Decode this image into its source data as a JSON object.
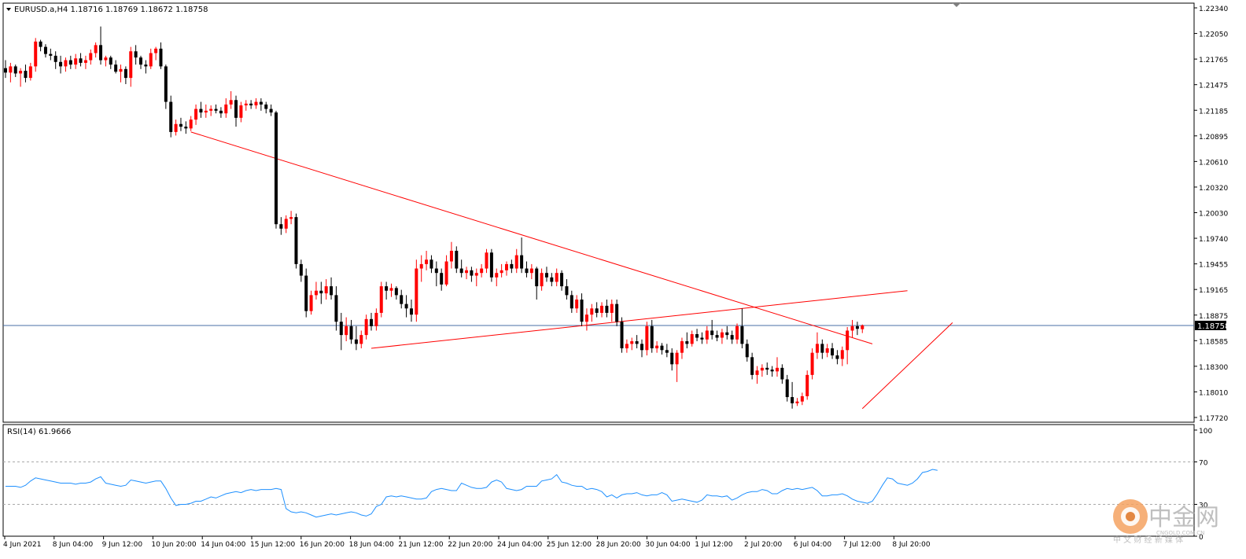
{
  "header": {
    "symbol_info": "EURUSD.a,H4  1.18716 1.18769 1.18672 1.18758"
  },
  "rsi_panel": {
    "label": "RSI(14) 61.9666",
    "levels": [
      100,
      70,
      30,
      0
    ]
  },
  "current_price_label": "1.18758",
  "watermark": {
    "main": "中金网",
    "sub": "CNGOLD.COM.CN",
    "tagline": "中 文 财 经 新 媒 体"
  },
  "colors": {
    "up_candle": "#ff0000",
    "down_candle": "#000000",
    "trendline": "#ff0000",
    "price_line": "#4a6fa5",
    "rsi_line": "#1e90ff",
    "rsi_levels": "#a9a9a9",
    "grid_border": "#000000"
  },
  "chart_data": {
    "type": "candlestick",
    "symbol": "EURUSD.a",
    "timeframe": "H4",
    "ylim": [
      1.1772,
      1.2234
    ],
    "y_ticks": [
      "1.22340",
      "1.22050",
      "1.21765",
      "1.21475",
      "1.21185",
      "1.20895",
      "1.20610",
      "1.20320",
      "1.20030",
      "1.19740",
      "1.19455",
      "1.19165",
      "1.18875",
      "1.18585",
      "1.18300",
      "1.18010",
      "1.17720"
    ],
    "x_ticks": [
      "4 Jun 2021",
      "8 Jun 04:00",
      "9 Jun 12:00",
      "10 Jun 20:00",
      "14 Jun 04:00",
      "15 Jun 12:00",
      "16 Jun 20:00",
      "18 Jun 04:00",
      "21 Jun 12:00",
      "22 Jun 20:00",
      "24 Jun 04:00",
      "25 Jun 12:00",
      "28 Jun 20:00",
      "30 Jun 04:00",
      "1 Jul 12:00",
      "2 Jul 20:00",
      "6 Jul 04:00",
      "7 Jul 12:00",
      "8 Jul 20:00"
    ],
    "current_price": 1.18758,
    "candles": [
      [
        1.2166,
        1.2175,
        1.2155,
        1.2161
      ],
      [
        1.2161,
        1.2172,
        1.215,
        1.2168
      ],
      [
        1.2168,
        1.217,
        1.2156,
        1.216
      ],
      [
        1.216,
        1.2166,
        1.2145,
        1.2163
      ],
      [
        1.2163,
        1.217,
        1.215,
        1.2155
      ],
      [
        1.2155,
        1.2172,
        1.2152,
        1.2168
      ],
      [
        1.2168,
        1.22,
        1.2162,
        1.2196
      ],
      [
        1.2196,
        1.2198,
        1.2185,
        1.219
      ],
      [
        1.219,
        1.2193,
        1.2178,
        1.2182
      ],
      [
        1.2182,
        1.2188,
        1.2175,
        1.218
      ],
      [
        1.218,
        1.2185,
        1.2165,
        1.2173
      ],
      [
        1.2173,
        1.218,
        1.216,
        1.2168
      ],
      [
        1.2168,
        1.2178,
        1.2162,
        1.2175
      ],
      [
        1.2175,
        1.218,
        1.2165,
        1.217
      ],
      [
        1.217,
        1.2182,
        1.2165,
        1.2177
      ],
      [
        1.2177,
        1.2183,
        1.2168,
        1.2172
      ],
      [
        1.2172,
        1.218,
        1.2165,
        1.2175
      ],
      [
        1.2175,
        1.2187,
        1.217,
        1.2183
      ],
      [
        1.2183,
        1.2195,
        1.2178,
        1.2192
      ],
      [
        1.2192,
        1.2213,
        1.217,
        1.2175
      ],
      [
        1.2175,
        1.218,
        1.2168,
        1.2178
      ],
      [
        1.2178,
        1.218,
        1.2165,
        1.217
      ],
      [
        1.217,
        1.2175,
        1.216,
        1.2162
      ],
      [
        1.2162,
        1.217,
        1.215,
        1.2165
      ],
      [
        1.2165,
        1.2168,
        1.2148,
        1.2155
      ],
      [
        1.2155,
        1.219,
        1.2145,
        1.2185
      ],
      [
        1.2185,
        1.2192,
        1.217,
        1.2178
      ],
      [
        1.2178,
        1.218,
        1.2165,
        1.217
      ],
      [
        1.217,
        1.2175,
        1.216,
        1.2168
      ],
      [
        1.2168,
        1.2188,
        1.2165,
        1.2183
      ],
      [
        1.2183,
        1.219,
        1.2175,
        1.2188
      ],
      [
        1.2188,
        1.2195,
        1.2165,
        1.2168
      ],
      [
        1.2168,
        1.217,
        1.212,
        1.2128
      ],
      [
        1.2128,
        1.2135,
        1.2088,
        1.2094
      ],
      [
        1.2094,
        1.2108,
        1.209,
        1.2103
      ],
      [
        1.2103,
        1.211,
        1.2095,
        1.21
      ],
      [
        1.21,
        1.2106,
        1.2092,
        1.2098
      ],
      [
        1.2098,
        1.2112,
        1.2095,
        1.2108
      ],
      [
        1.2108,
        1.2125,
        1.2102,
        1.212
      ],
      [
        1.212,
        1.2128,
        1.211,
        1.2116
      ],
      [
        1.2116,
        1.2125,
        1.211,
        1.2118
      ],
      [
        1.2118,
        1.2124,
        1.2112,
        1.212
      ],
      [
        1.212,
        1.2125,
        1.2115,
        1.2118
      ],
      [
        1.2118,
        1.2122,
        1.211,
        1.2115
      ],
      [
        1.2115,
        1.2132,
        1.211,
        1.2125
      ],
      [
        1.2125,
        1.214,
        1.212,
        1.213
      ],
      [
        1.213,
        1.2135,
        1.21,
        1.211
      ],
      [
        1.211,
        1.2128,
        1.2105,
        1.2124
      ],
      [
        1.2124,
        1.213,
        1.2118,
        1.2126
      ],
      [
        1.2126,
        1.213,
        1.212,
        1.2124
      ],
      [
        1.2124,
        1.2132,
        1.212,
        1.2128
      ],
      [
        1.2128,
        1.2132,
        1.2118,
        1.2125
      ],
      [
        1.2125,
        1.2128,
        1.2115,
        1.212
      ],
      [
        1.212,
        1.2125,
        1.2112,
        1.2116
      ],
      [
        1.2116,
        1.2118,
        1.1985,
        1.199
      ],
      [
        1.199,
        1.1998,
        1.1978,
        1.1985
      ],
      [
        1.1985,
        1.2,
        1.198,
        1.1996
      ],
      [
        1.1996,
        1.2005,
        1.199,
        1.1998
      ],
      [
        1.1998,
        1.2002,
        1.194,
        1.1945
      ],
      [
        1.1945,
        1.195,
        1.1925,
        1.1932
      ],
      [
        1.1932,
        1.194,
        1.1885,
        1.1892
      ],
      [
        1.1892,
        1.1915,
        1.1888,
        1.191
      ],
      [
        1.191,
        1.1925,
        1.1905,
        1.1915
      ],
      [
        1.1915,
        1.1925,
        1.19,
        1.1912
      ],
      [
        1.1912,
        1.1928,
        1.1905,
        1.192
      ],
      [
        1.192,
        1.193,
        1.1905,
        1.191
      ],
      [
        1.191,
        1.192,
        1.187,
        1.188
      ],
      [
        1.188,
        1.189,
        1.1848,
        1.1865
      ],
      [
        1.1865,
        1.1885,
        1.1858,
        1.1875
      ],
      [
        1.1875,
        1.1882,
        1.1855,
        1.186
      ],
      [
        1.186,
        1.1875,
        1.1848,
        1.1855
      ],
      [
        1.1855,
        1.187,
        1.185,
        1.1865
      ],
      [
        1.1865,
        1.1888,
        1.186,
        1.1883
      ],
      [
        1.1883,
        1.189,
        1.187,
        1.1875
      ],
      [
        1.1875,
        1.1895,
        1.187,
        1.189
      ],
      [
        1.189,
        1.1925,
        1.1885,
        1.192
      ],
      [
        1.192,
        1.1925,
        1.1905,
        1.1915
      ],
      [
        1.1915,
        1.1923,
        1.1908,
        1.1918
      ],
      [
        1.1918,
        1.192,
        1.1905,
        1.191
      ],
      [
        1.191,
        1.1916,
        1.1895,
        1.19
      ],
      [
        1.19,
        1.191,
        1.1885,
        1.1895
      ],
      [
        1.1895,
        1.1905,
        1.188,
        1.1888
      ],
      [
        1.1888,
        1.195,
        1.188,
        1.194
      ],
      [
        1.194,
        1.1955,
        1.1925,
        1.1945
      ],
      [
        1.1945,
        1.196,
        1.1938,
        1.195
      ],
      [
        1.195,
        1.1955,
        1.1935,
        1.194
      ],
      [
        1.194,
        1.1948,
        1.192,
        1.1935
      ],
      [
        1.1935,
        1.194,
        1.1915,
        1.1922
      ],
      [
        1.1922,
        1.1955,
        1.192,
        1.1948
      ],
      [
        1.1948,
        1.197,
        1.194,
        1.196
      ],
      [
        1.196,
        1.1965,
        1.1935,
        1.194
      ],
      [
        1.194,
        1.195,
        1.193,
        1.1935
      ],
      [
        1.1935,
        1.1942,
        1.1928,
        1.1938
      ],
      [
        1.1938,
        1.1942,
        1.1925,
        1.1932
      ],
      [
        1.1932,
        1.194,
        1.192,
        1.1935
      ],
      [
        1.1935,
        1.1945,
        1.193,
        1.194
      ],
      [
        1.194,
        1.1962,
        1.1935,
        1.1958
      ],
      [
        1.1958,
        1.1962,
        1.1925,
        1.193
      ],
      [
        1.193,
        1.194,
        1.192,
        1.1935
      ],
      [
        1.1935,
        1.1945,
        1.193,
        1.1938
      ],
      [
        1.1938,
        1.1948,
        1.1932,
        1.1945
      ],
      [
        1.1945,
        1.195,
        1.1935,
        1.194
      ],
      [
        1.194,
        1.1962,
        1.1935,
        1.1955
      ],
      [
        1.1955,
        1.1975,
        1.1935,
        1.194
      ],
      [
        1.194,
        1.1948,
        1.193,
        1.1935
      ],
      [
        1.1935,
        1.1945,
        1.1928,
        1.194
      ],
      [
        1.194,
        1.1942,
        1.1905,
        1.192
      ],
      [
        1.192,
        1.194,
        1.1915,
        1.1935
      ],
      [
        1.1935,
        1.1942,
        1.1925,
        1.193
      ],
      [
        1.193,
        1.1935,
        1.192,
        1.1925
      ],
      [
        1.1925,
        1.194,
        1.192,
        1.1935
      ],
      [
        1.1935,
        1.1938,
        1.1915,
        1.192
      ],
      [
        1.192,
        1.1928,
        1.1905,
        1.191
      ],
      [
        1.191,
        1.1915,
        1.189,
        1.1895
      ],
      [
        1.1895,
        1.191,
        1.189,
        1.1905
      ],
      [
        1.1905,
        1.1912,
        1.1875,
        1.188
      ],
      [
        1.188,
        1.1895,
        1.187,
        1.1888
      ],
      [
        1.1888,
        1.19,
        1.188,
        1.1895
      ],
      [
        1.1895,
        1.1902,
        1.1885,
        1.189
      ],
      [
        1.189,
        1.1902,
        1.1885,
        1.1898
      ],
      [
        1.1898,
        1.1905,
        1.1885,
        1.189
      ],
      [
        1.189,
        1.1905,
        1.188,
        1.19
      ],
      [
        1.19,
        1.1905,
        1.1875,
        1.188
      ],
      [
        1.188,
        1.1885,
        1.1845,
        1.185
      ],
      [
        1.185,
        1.186,
        1.1845,
        1.1855
      ],
      [
        1.1855,
        1.1862,
        1.1848,
        1.1858
      ],
      [
        1.1858,
        1.1865,
        1.185,
        1.1855
      ],
      [
        1.1855,
        1.186,
        1.184,
        1.1848
      ],
      [
        1.1848,
        1.188,
        1.1842,
        1.1875
      ],
      [
        1.1875,
        1.1882,
        1.1845,
        1.185
      ],
      [
        1.185,
        1.1858,
        1.1845,
        1.1853
      ],
      [
        1.1853,
        1.1856,
        1.1843,
        1.1848
      ],
      [
        1.1848,
        1.1855,
        1.184,
        1.1845
      ],
      [
        1.1845,
        1.185,
        1.1825,
        1.1832
      ],
      [
        1.1832,
        1.1848,
        1.1812,
        1.1845
      ],
      [
        1.1845,
        1.1862,
        1.1838,
        1.1858
      ],
      [
        1.1858,
        1.1868,
        1.185,
        1.1855
      ],
      [
        1.1855,
        1.187,
        1.1852,
        1.1866
      ],
      [
        1.1866,
        1.1872,
        1.1858,
        1.1862
      ],
      [
        1.1862,
        1.1868,
        1.1855,
        1.186
      ],
      [
        1.186,
        1.1875,
        1.1855,
        1.187
      ],
      [
        1.187,
        1.1882,
        1.186,
        1.1865
      ],
      [
        1.1865,
        1.187,
        1.1858,
        1.1862
      ],
      [
        1.1862,
        1.1872,
        1.1855,
        1.1868
      ],
      [
        1.1868,
        1.1875,
        1.186,
        1.1865
      ],
      [
        1.1865,
        1.187,
        1.1855,
        1.186
      ],
      [
        1.186,
        1.1878,
        1.1855,
        1.1875
      ],
      [
        1.1875,
        1.1895,
        1.185,
        1.1855
      ],
      [
        1.1855,
        1.186,
        1.1835,
        1.184
      ],
      [
        1.184,
        1.1845,
        1.1815,
        1.182
      ],
      [
        1.182,
        1.183,
        1.181,
        1.1825
      ],
      [
        1.1825,
        1.1832,
        1.1818,
        1.1828
      ],
      [
        1.1828,
        1.1834,
        1.182,
        1.1826
      ],
      [
        1.1826,
        1.183,
        1.1818,
        1.1824
      ],
      [
        1.1824,
        1.184,
        1.1818,
        1.1828
      ],
      [
        1.1828,
        1.1832,
        1.181,
        1.1815
      ],
      [
        1.1815,
        1.182,
        1.179,
        1.1795
      ],
      [
        1.1795,
        1.1812,
        1.1782,
        1.1788
      ],
      [
        1.1788,
        1.1794,
        1.1785,
        1.179
      ],
      [
        1.179,
        1.18,
        1.1786,
        1.1796
      ],
      [
        1.1796,
        1.1825,
        1.1792,
        1.182
      ],
      [
        1.182,
        1.185,
        1.1815,
        1.1845
      ],
      [
        1.1845,
        1.1868,
        1.1838,
        1.1855
      ],
      [
        1.1855,
        1.186,
        1.1838,
        1.1845
      ],
      [
        1.1845,
        1.1855,
        1.184,
        1.185
      ],
      [
        1.185,
        1.1856,
        1.1838,
        1.1842
      ],
      [
        1.1842,
        1.1848,
        1.1832,
        1.1838
      ],
      [
        1.1838,
        1.1852,
        1.183,
        1.1848
      ],
      [
        1.1848,
        1.1874,
        1.1832,
        1.187
      ],
      [
        1.187,
        1.1882,
        1.1862,
        1.1875
      ],
      [
        1.1875,
        1.188,
        1.1865,
        1.1872
      ],
      [
        1.18716,
        1.18769,
        1.18672,
        1.18758
      ]
    ],
    "trendlines": [
      {
        "from": {
          "bar": 37,
          "price": 1.2094
        },
        "to": {
          "bar": 173,
          "price": 1.1855
        }
      },
      {
        "from": {
          "bar": 73,
          "price": 1.185
        },
        "to": {
          "bar": 180,
          "price": 1.1915
        }
      },
      {
        "from": {
          "bar": 171,
          "price": 1.1782
        },
        "to": {
          "bar": 189,
          "price": 1.1879
        }
      }
    ],
    "rsi": {
      "period": 14,
      "last": 61.9666,
      "values": [
        47,
        47,
        47,
        46,
        48,
        52,
        55,
        54,
        53,
        52,
        51,
        50,
        50,
        50,
        49,
        50,
        50,
        51,
        54,
        56,
        50,
        49,
        48,
        47,
        48,
        53,
        52,
        51,
        50,
        51,
        52,
        52,
        45,
        36,
        29,
        30,
        30,
        31,
        33,
        33,
        35,
        37,
        36,
        38,
        40,
        41,
        42,
        41,
        43,
        44,
        43,
        44,
        44,
        44,
        45,
        44,
        26,
        23,
        22,
        23,
        22,
        20,
        18,
        19,
        20,
        21,
        20,
        21,
        22,
        23,
        22,
        20,
        19,
        21,
        28,
        30,
        37,
        38,
        37,
        38,
        37,
        36,
        35,
        35,
        36,
        42,
        44,
        45,
        44,
        43,
        43,
        50,
        48,
        46,
        45,
        45,
        46,
        51,
        53,
        51,
        45,
        44,
        43,
        44,
        47,
        47,
        47,
        52,
        53,
        54,
        58,
        51,
        50,
        48,
        47,
        47,
        44,
        45,
        44,
        42,
        37,
        39,
        36,
        39,
        40,
        40,
        41,
        39,
        38,
        39,
        39,
        41,
        39,
        33,
        34,
        35,
        34,
        33,
        32,
        34,
        39,
        38,
        38,
        37,
        38,
        34,
        36,
        39,
        41,
        42,
        42,
        44,
        43,
        40,
        40,
        43,
        45,
        44,
        45,
        44,
        45,
        46,
        43,
        38,
        38,
        39,
        39,
        40,
        38,
        35,
        33,
        32,
        31,
        33,
        40,
        48,
        55,
        54,
        50,
        49,
        48,
        50,
        54,
        60,
        61,
        63,
        61.9666
      ]
    },
    "rsi_ylim": [
      0,
      100
    ],
    "rsi_levels": [
      70,
      30
    ]
  }
}
